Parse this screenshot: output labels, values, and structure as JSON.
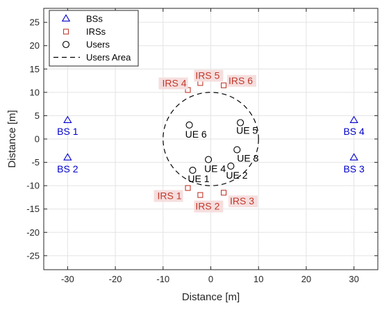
{
  "chart_data": {
    "type": "scatter",
    "xlabel": "Distance [m]",
    "ylabel": "Distance [m]",
    "xlim": [
      -35,
      35
    ],
    "ylim": [
      -28,
      28
    ],
    "x_ticks": [
      -30,
      -20,
      -10,
      0,
      10,
      20,
      30
    ],
    "y_ticks": [
      -25,
      -20,
      -15,
      -10,
      -5,
      0,
      5,
      10,
      15,
      20,
      25
    ],
    "grid": true,
    "legend_position": "top-left",
    "colors": {
      "bs": "#0000cc",
      "irs": "#c0392b",
      "irs_label_bg": "#f6dede",
      "users": "#000000",
      "area": "#000000",
      "grid": "#e3e3e3",
      "axes": "#262626"
    },
    "legend": [
      {
        "label": "BSs",
        "marker": "triangle"
      },
      {
        "label": "IRSs",
        "marker": "square"
      },
      {
        "label": "Users",
        "marker": "circle"
      },
      {
        "label": "Users Area",
        "marker": "dashed-line"
      }
    ],
    "series": [
      {
        "name": "BSs",
        "marker": "triangle",
        "points": [
          {
            "label": "BS 1",
            "x": -30,
            "y": 4
          },
          {
            "label": "BS 2",
            "x": -30,
            "y": -4
          },
          {
            "label": "BS 3",
            "x": 30,
            "y": -4
          },
          {
            "label": "BS 4",
            "x": 30,
            "y": 4
          }
        ]
      },
      {
        "name": "IRSs",
        "marker": "square",
        "points": [
          {
            "label": "IRS 1",
            "x": -4.8,
            "y": -10.5
          },
          {
            "label": "IRS 2",
            "x": -2.2,
            "y": -12
          },
          {
            "label": "IRS 3",
            "x": 2.7,
            "y": -11.5
          },
          {
            "label": "IRS 4",
            "x": -4.8,
            "y": 10.5
          },
          {
            "label": "IRS 5",
            "x": -2.2,
            "y": 12
          },
          {
            "label": "IRS 6",
            "x": 2.7,
            "y": 11.5
          }
        ]
      },
      {
        "name": "Users",
        "marker": "circle",
        "points": [
          {
            "label": "UE 1",
            "x": -3.8,
            "y": -6.7
          },
          {
            "label": "UE 2",
            "x": 4.2,
            "y": -5.8
          },
          {
            "label": "UE 3",
            "x": 5.5,
            "y": -2.3
          },
          {
            "label": "UE 4",
            "x": -0.5,
            "y": -4.4
          },
          {
            "label": "UE 5",
            "x": 6.2,
            "y": 3.5
          },
          {
            "label": "UE 6",
            "x": -4.5,
            "y": 3.0
          }
        ]
      }
    ],
    "users_area": {
      "center_x": 0,
      "center_y": 0,
      "radius": 10
    }
  }
}
